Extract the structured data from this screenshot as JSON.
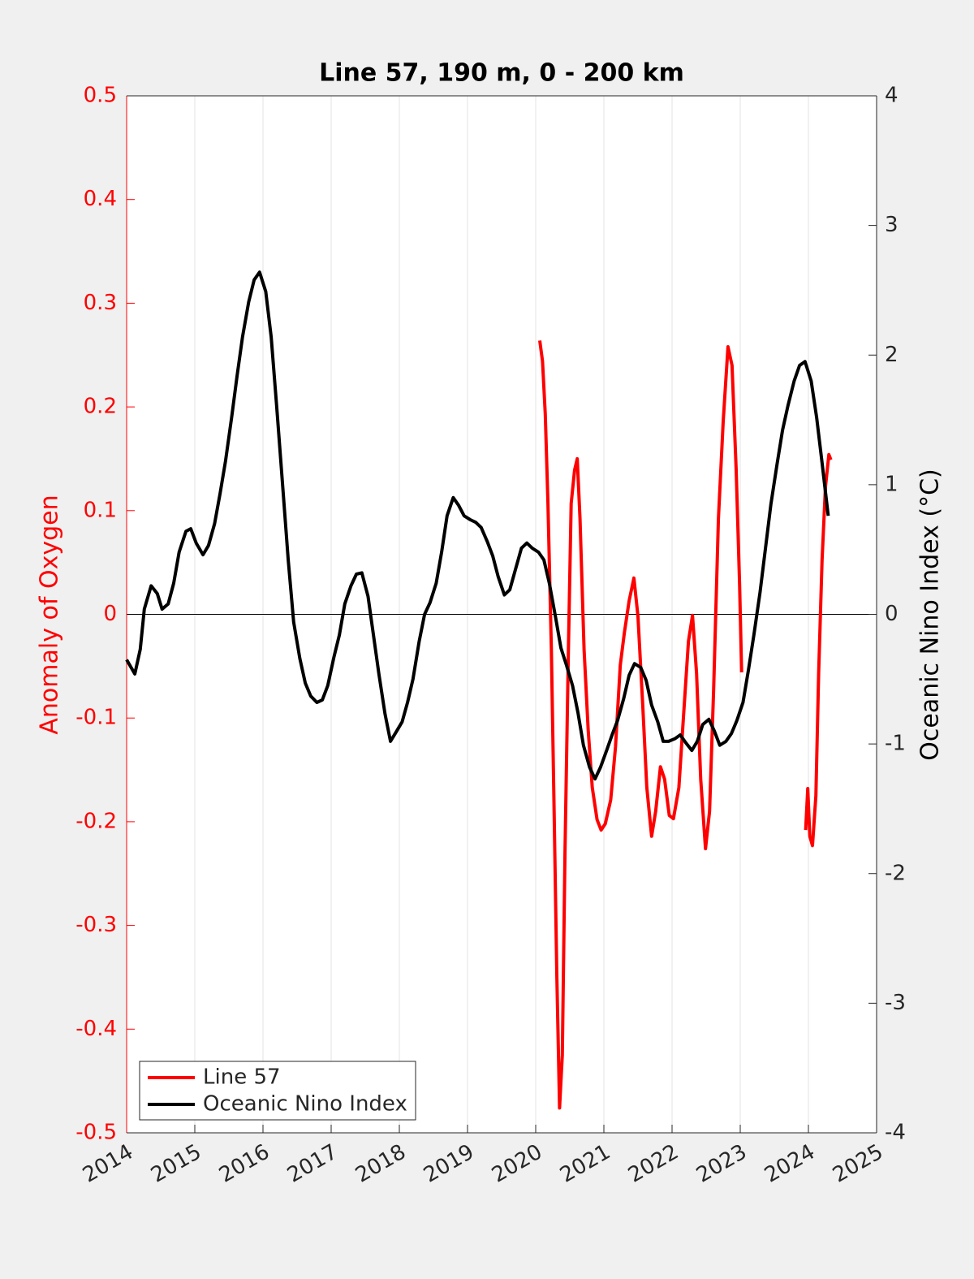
{
  "chart_data": {
    "type": "line",
    "title": "Line 57, 190 m, 0 - 200 km",
    "ylabel": "Anomaly of Oxygen",
    "y2label": "Oceanic Nino Index (°C)",
    "xlim": [
      2014,
      2025
    ],
    "xticks": [
      2014,
      2015,
      2016,
      2017,
      2018,
      2019,
      2020,
      2021,
      2022,
      2023,
      2024,
      2025
    ],
    "ylim": [
      -0.5,
      0.5
    ],
    "yticks": [
      -0.5,
      -0.4,
      -0.3,
      -0.2,
      -0.1,
      0,
      0.1,
      0.2,
      0.3,
      0.4,
      0.5
    ],
    "y2lim": [
      -4,
      4
    ],
    "y2ticks": [
      -4,
      -3,
      -2,
      -1,
      0,
      1,
      2,
      3,
      4
    ],
    "grid": "x",
    "legend": "lower left",
    "ylabel_color": "#ff0000",
    "series": [
      {
        "name": "Line 57",
        "color": "#ff0000",
        "axis": "y",
        "x": [
          2020.06,
          2020.1,
          2020.14,
          2020.18,
          2020.23,
          2020.27,
          2020.31,
          2020.35,
          2020.39,
          2020.43,
          2020.48,
          2020.52,
          2020.57,
          2020.61,
          2020.65,
          2020.71,
          2020.77,
          2020.83,
          2020.9,
          2020.96,
          2021.02,
          2021.1,
          2021.17,
          2021.24,
          2021.3,
          2021.37,
          2021.44,
          2021.5,
          2021.57,
          2021.63,
          2021.7,
          2021.76,
          2021.83,
          2021.89,
          2021.96,
          2022.02,
          2022.1,
          2022.17,
          2022.24,
          2022.3,
          2022.36,
          2022.42,
          2022.49,
          2022.55,
          2022.61,
          2022.68,
          2022.75,
          2022.82,
          2022.88,
          2022.94,
          2022.99,
          2023.02,
          2023.5,
          2023.96,
          2023.99,
          2024.02,
          2024.06,
          2024.11,
          2024.15,
          2024.2,
          2024.25,
          2024.3,
          2024.33
        ],
        "values": [
          0.264,
          0.244,
          0.193,
          0.107,
          -0.034,
          -0.19,
          -0.347,
          -0.476,
          -0.425,
          -0.229,
          -0.034,
          0.107,
          0.139,
          0.15,
          0.092,
          -0.034,
          -0.112,
          -0.167,
          -0.198,
          -0.208,
          -0.202,
          -0.179,
          -0.128,
          -0.049,
          -0.018,
          0.013,
          0.035,
          -0.002,
          -0.088,
          -0.167,
          -0.214,
          -0.19,
          -0.147,
          -0.159,
          -0.194,
          -0.197,
          -0.167,
          -0.096,
          -0.026,
          -0.001,
          -0.057,
          -0.159,
          -0.226,
          -0.19,
          -0.073,
          0.092,
          0.186,
          0.258,
          0.24,
          0.139,
          0.029,
          -0.056,
          null,
          -0.208,
          -0.168,
          -0.214,
          -0.223,
          -0.175,
          -0.057,
          0.052,
          0.123,
          0.154,
          0.149
        ]
      },
      {
        "name": "Oceanic Nino Index",
        "color": "#000000",
        "axis": "y2",
        "x": [
          2014.0,
          2014.12,
          2014.2,
          2014.26,
          2014.36,
          2014.45,
          2014.52,
          2014.61,
          2014.69,
          2014.77,
          2014.87,
          2014.94,
          2015.02,
          2015.12,
          2015.2,
          2015.29,
          2015.37,
          2015.45,
          2015.54,
          2015.62,
          2015.7,
          2015.79,
          2015.87,
          2015.95,
          2016.04,
          2016.12,
          2016.2,
          2016.29,
          2016.37,
          2016.45,
          2016.54,
          2016.62,
          2016.7,
          2016.79,
          2016.87,
          2016.95,
          2017.04,
          2017.12,
          2017.2,
          2017.29,
          2017.37,
          2017.45,
          2017.54,
          2017.62,
          2017.7,
          2017.79,
          2017.87,
          2017.95,
          2018.04,
          2018.12,
          2018.2,
          2018.29,
          2018.37,
          2018.45,
          2018.54,
          2018.62,
          2018.7,
          2018.79,
          2018.87,
          2018.95,
          2019.04,
          2019.12,
          2019.2,
          2019.29,
          2019.37,
          2019.45,
          2019.54,
          2019.62,
          2019.7,
          2019.79,
          2019.87,
          2019.95,
          2020.04,
          2020.12,
          2020.2,
          2020.29,
          2020.37,
          2020.45,
          2020.54,
          2020.62,
          2020.7,
          2020.79,
          2020.87,
          2020.95,
          2021.04,
          2021.12,
          2021.2,
          2021.29,
          2021.37,
          2021.45,
          2021.54,
          2021.62,
          2021.7,
          2021.79,
          2021.87,
          2021.95,
          2022.04,
          2022.12,
          2022.2,
          2022.29,
          2022.37,
          2022.45,
          2022.54,
          2022.62,
          2022.7,
          2022.79,
          2022.87,
          2022.95,
          2023.04,
          2023.12,
          2023.2,
          2023.29,
          2023.37,
          2023.45,
          2023.54,
          2023.62,
          2023.7,
          2023.79,
          2023.87,
          2023.95,
          2024.04,
          2024.12,
          2024.2,
          2024.29
        ],
        "values": [
          -0.35,
          -0.46,
          -0.27,
          0.04,
          0.22,
          0.16,
          0.04,
          0.08,
          0.24,
          0.48,
          0.64,
          0.66,
          0.55,
          0.46,
          0.53,
          0.7,
          0.93,
          1.18,
          1.52,
          1.84,
          2.14,
          2.41,
          2.58,
          2.64,
          2.49,
          2.14,
          1.61,
          0.98,
          0.42,
          -0.06,
          -0.34,
          -0.53,
          -0.63,
          -0.68,
          -0.66,
          -0.55,
          -0.33,
          -0.16,
          0.08,
          0.22,
          0.31,
          0.32,
          0.14,
          -0.16,
          -0.46,
          -0.77,
          -0.98,
          -0.91,
          -0.83,
          -0.68,
          -0.5,
          -0.21,
          0.0,
          0.09,
          0.24,
          0.48,
          0.76,
          0.9,
          0.84,
          0.76,
          0.73,
          0.71,
          0.67,
          0.56,
          0.45,
          0.29,
          0.15,
          0.19,
          0.34,
          0.51,
          0.55,
          0.51,
          0.48,
          0.42,
          0.24,
          -0.02,
          -0.26,
          -0.39,
          -0.55,
          -0.76,
          -1.01,
          -1.18,
          -1.27,
          -1.18,
          -1.05,
          -0.93,
          -0.82,
          -0.65,
          -0.47,
          -0.38,
          -0.41,
          -0.51,
          -0.7,
          -0.83,
          -0.98,
          -0.98,
          -0.96,
          -0.93,
          -0.99,
          -1.05,
          -0.98,
          -0.85,
          -0.81,
          -0.9,
          -1.01,
          -0.98,
          -0.92,
          -0.82,
          -0.68,
          -0.43,
          -0.16,
          0.17,
          0.51,
          0.85,
          1.16,
          1.42,
          1.61,
          1.8,
          1.92,
          1.95,
          1.8,
          1.52,
          1.17,
          0.76
        ]
      }
    ]
  }
}
